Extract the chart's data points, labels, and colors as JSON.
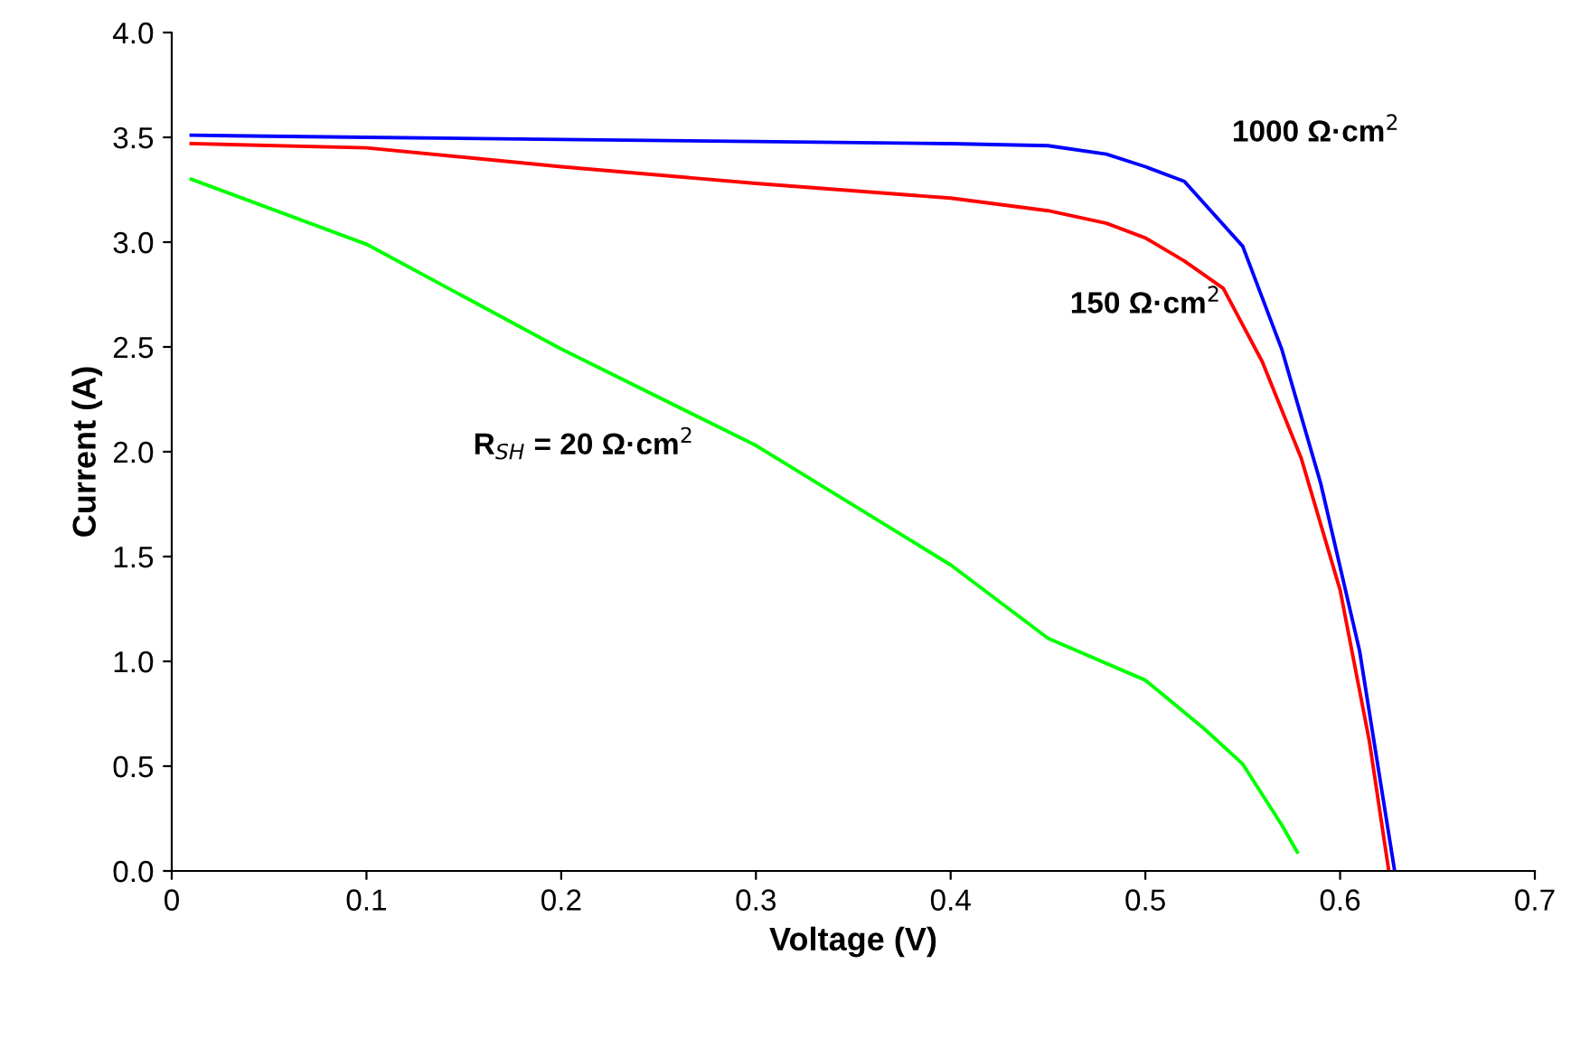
{
  "chart_data": {
    "type": "line",
    "xlabel": "Voltage (V)",
    "ylabel": "Current (A)",
    "xlim": [
      0,
      0.7
    ],
    "ylim": [
      0,
      4.0
    ],
    "xticks": [
      0,
      0.1,
      0.2,
      0.3,
      0.4,
      0.5,
      0.6,
      0.7
    ],
    "yticks": [
      {
        "value": 0,
        "label": "0.0"
      },
      0.5,
      {
        "value": 1,
        "label": "1.0"
      },
      1.5,
      {
        "value": 2,
        "label": "2.0"
      },
      2.5,
      {
        "value": 3,
        "label": "3.0"
      },
      3.5,
      {
        "value": 4,
        "label": "4.0"
      }
    ],
    "grid": false,
    "legend": false,
    "marker": "none",
    "line_style": "solid",
    "series": [
      {
        "name": "1000 Ω·cm$^{2}$",
        "color": "#0000ff",
        "x": [
          0.01,
          0.1,
          0.2,
          0.3,
          0.4,
          0.45,
          0.48,
          0.5,
          0.52,
          0.55,
          0.57,
          0.59,
          0.61,
          0.628
        ],
        "values": [
          3.51,
          3.5,
          3.49,
          3.48,
          3.47,
          3.46,
          3.42,
          3.36,
          3.29,
          2.98,
          2.49,
          1.85,
          1.05,
          0
        ]
      },
      {
        "name": "150 Ω·cm$^{2}$",
        "color": "#ff0000",
        "x": [
          0.01,
          0.1,
          0.2,
          0.3,
          0.4,
          0.45,
          0.48,
          0.5,
          0.52,
          0.54,
          0.56,
          0.58,
          0.6,
          0.615,
          0.625
        ],
        "values": [
          3.47,
          3.45,
          3.36,
          3.28,
          3.21,
          3.15,
          3.09,
          3.02,
          2.91,
          2.78,
          2.43,
          1.97,
          1.34,
          0.62,
          0
        ]
      },
      {
        "name": "R$_{SH}$ = 20 Ω·cm$^{2}$",
        "color": "#00ff00",
        "x": [
          0.01,
          0.1,
          0.2,
          0.3,
          0.4,
          0.45,
          0.5,
          0.53,
          0.55,
          0.57,
          0.578
        ],
        "values": [
          3.3,
          2.99,
          2.49,
          2.03,
          1.46,
          1.11,
          0.91,
          0.68,
          0.51,
          0.22,
          0.09
        ]
      }
    ]
  }
}
